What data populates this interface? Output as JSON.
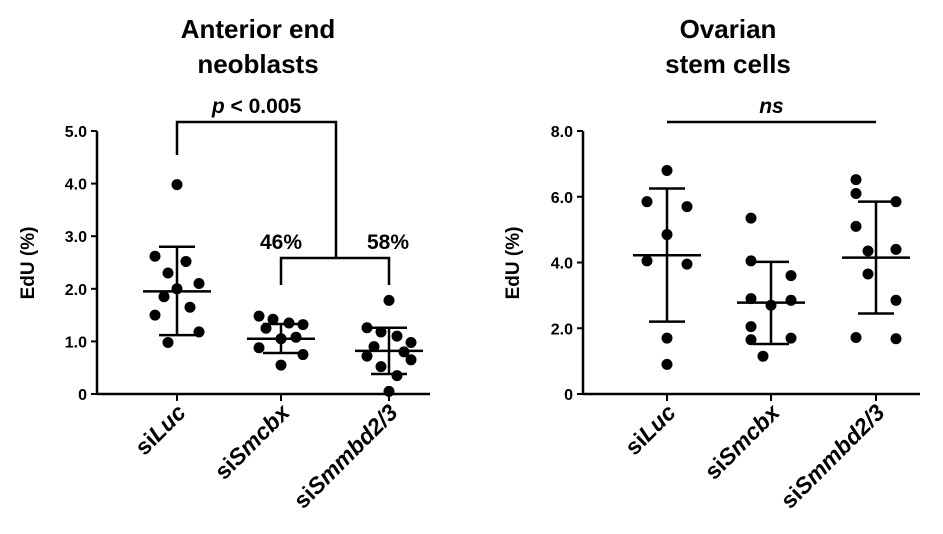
{
  "chart_data": [
    {
      "type": "scatter",
      "title": [
        "Anterior end",
        "neoblasts"
      ],
      "ylabel": "EdU (%)",
      "ylim": [
        0,
        5
      ],
      "yticks": [
        "0",
        "1.0",
        "2.0",
        "3.0",
        "4.0",
        "5.0"
      ],
      "categories": [
        {
          "prefix": "si",
          "italic": "Luc"
        },
        {
          "prefix": "si",
          "italic": "Smcbx"
        },
        {
          "prefix": "si",
          "italic": "Smmbd2/3"
        }
      ],
      "groups": [
        {
          "mean": 1.95,
          "sd_low": 1.12,
          "sd_high": 2.8,
          "points": [
            3.98,
            2.62,
            2.52,
            2.3,
            2.1,
            2.0,
            1.85,
            1.65,
            1.5,
            1.18,
            0.98
          ]
        },
        {
          "mean": 1.05,
          "sd_low": 0.78,
          "sd_high": 1.33,
          "points": [
            1.48,
            1.42,
            1.35,
            1.32,
            1.25,
            1.08,
            1.05,
            0.88,
            0.75,
            0.55
          ]
        },
        {
          "mean": 0.82,
          "sd_low": 0.38,
          "sd_high": 1.26,
          "points": [
            1.78,
            1.26,
            1.18,
            1.1,
            0.98,
            0.9,
            0.8,
            0.72,
            0.65,
            0.52,
            0.35,
            0.05
          ]
        }
      ],
      "significance": {
        "text_prefix": "p",
        "text_rest": " < 0.005"
      },
      "percentages": [
        "46%",
        "58%"
      ]
    },
    {
      "type": "scatter",
      "title": [
        "Ovarian",
        "stem cells"
      ],
      "ylabel": "EdU (%)",
      "ylim": [
        0,
        8
      ],
      "yticks": [
        "0",
        "2.0",
        "4.0",
        "6.0",
        "8.0"
      ],
      "categories": [
        {
          "prefix": "si",
          "italic": "Luc"
        },
        {
          "prefix": "si",
          "italic": "Smcbx"
        },
        {
          "prefix": "si",
          "italic": "Smmbd2/3"
        }
      ],
      "groups": [
        {
          "mean": 4.22,
          "sd_low": 2.2,
          "sd_high": 6.25,
          "points": [
            6.8,
            5.85,
            5.7,
            4.85,
            4.05,
            3.95,
            1.7,
            0.9
          ]
        },
        {
          "mean": 2.78,
          "sd_low": 1.52,
          "sd_high": 4.02,
          "points": [
            5.35,
            4.05,
            3.6,
            2.9,
            2.85,
            2.7,
            2.05,
            1.7,
            1.65,
            1.15
          ]
        },
        {
          "mean": 4.15,
          "sd_low": 2.45,
          "sd_high": 5.85,
          "points": [
            6.52,
            6.1,
            5.85,
            5.1,
            4.4,
            4.35,
            3.65,
            2.85,
            1.72,
            1.68
          ]
        }
      ],
      "significance": {
        "text": "ns"
      }
    }
  ]
}
